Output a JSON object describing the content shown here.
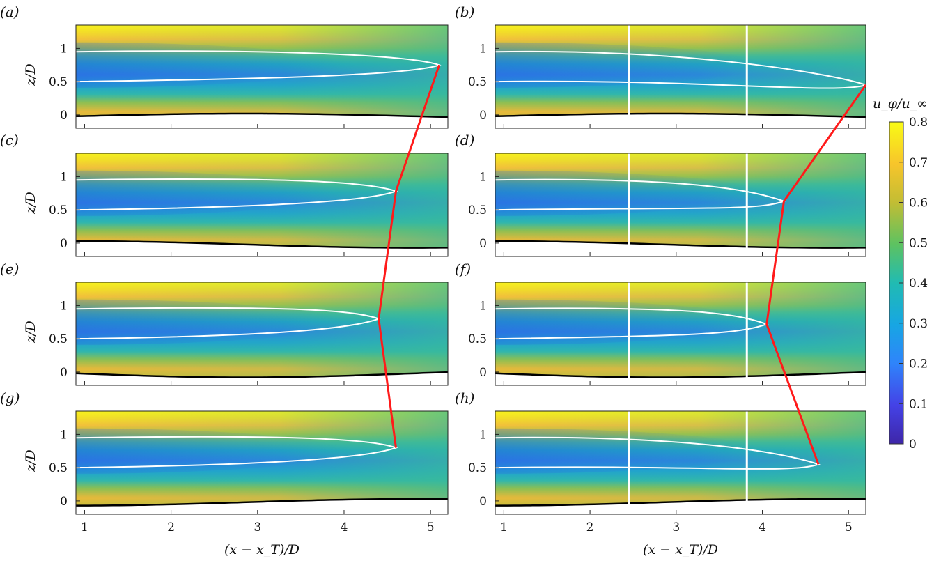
{
  "chart_data": {
    "type": "heatmap",
    "title": "",
    "xlabel": "(x − x_T)/D",
    "ylabel": "z/D",
    "xlim": [
      0.9,
      5.2
    ],
    "ylim": [
      -0.2,
      1.35
    ],
    "xticks": [
      "1",
      "2",
      "3",
      "4",
      "5"
    ],
    "yticks": [
      "0",
      "0.5",
      "1"
    ],
    "colorbar": {
      "label": "u_φ/u_∞",
      "range": [
        0,
        0.8
      ],
      "ticks": [
        "0",
        "0.1",
        "0.2",
        "0.3",
        "0.4",
        "0.5",
        "0.6",
        "0.7",
        "0.8"
      ]
    },
    "panels": [
      {
        "label": "(a)",
        "has_lines": false,
        "wake_tip": {
          "x": 5.1,
          "z": 0.75
        },
        "ground_amp": 0.04,
        "ground_phase": 0.0
      },
      {
        "label": "(b)",
        "has_lines": true,
        "wake_tip": {
          "x": 5.2,
          "z": 0.45
        },
        "ground_amp": 0.04,
        "ground_phase": 0.0
      },
      {
        "label": "(c)",
        "has_lines": false,
        "wake_tip": {
          "x": 4.6,
          "z": 0.78
        },
        "ground_amp": 0.05,
        "ground_phase": 1.57
      },
      {
        "label": "(d)",
        "has_lines": true,
        "wake_tip": {
          "x": 4.25,
          "z": 0.63
        },
        "ground_amp": 0.05,
        "ground_phase": 1.57
      },
      {
        "label": "(e)",
        "has_lines": false,
        "wake_tip": {
          "x": 4.4,
          "z": 0.8
        },
        "ground_amp": 0.06,
        "ground_phase": 3.14
      },
      {
        "label": "(f)",
        "has_lines": true,
        "wake_tip": {
          "x": 4.05,
          "z": 0.72
        },
        "ground_amp": 0.06,
        "ground_phase": 3.14
      },
      {
        "label": "(g)",
        "has_lines": false,
        "wake_tip": {
          "x": 4.6,
          "z": 0.8
        },
        "ground_amp": 0.05,
        "ground_phase": 4.71
      },
      {
        "label": "(h)",
        "has_lines": true,
        "wake_tip": {
          "x": 4.65,
          "z": 0.55
        },
        "ground_amp": 0.05,
        "ground_phase": 4.71
      }
    ],
    "vertical_lines_x": [
      2.45,
      3.82
    ],
    "colors": {
      "trace": "#ff1a1a",
      "ground": "#000000",
      "contour": "#ffffff"
    }
  }
}
